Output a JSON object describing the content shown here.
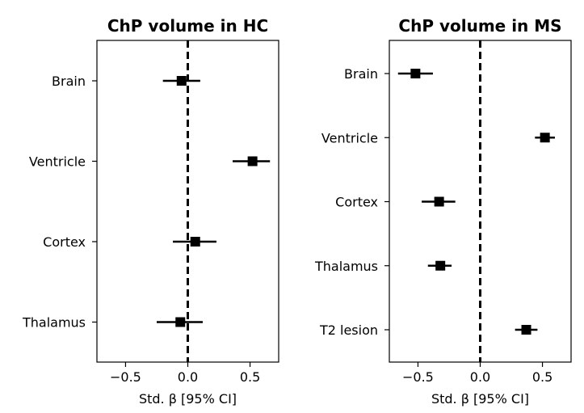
{
  "chart_data": [
    {
      "type": "forest",
      "title": "ChP volume in HC",
      "xlabel": "Std. β [95% CI]",
      "ylabel": "",
      "xlim": [
        -0.73,
        0.73
      ],
      "xticks": [
        -0.5,
        0.0,
        0.5
      ],
      "xtick_labels": [
        "−0.5",
        "0.0",
        "0.5"
      ],
      "reference_line": 0.0,
      "grid": false,
      "categories": [
        "Brain",
        "Ventricle",
        "Cortex",
        "Thalamus"
      ],
      "estimates": [
        -0.05,
        0.52,
        0.06,
        -0.06
      ],
      "ci_low": [
        -0.2,
        0.36,
        -0.12,
        -0.25
      ],
      "ci_high": [
        0.1,
        0.66,
        0.23,
        0.12
      ]
    },
    {
      "type": "forest",
      "title": "ChP volume in MS",
      "xlabel": "Std. β [95% CI]",
      "ylabel": "",
      "xlim": [
        -0.73,
        0.73
      ],
      "xticks": [
        -0.5,
        0.0,
        0.5
      ],
      "xtick_labels": [
        "−0.5",
        "0.0",
        "0.5"
      ],
      "reference_line": 0.0,
      "grid": false,
      "categories": [
        "Brain",
        "Ventricle",
        "Cortex",
        "Thalamus",
        "T2 lesion"
      ],
      "estimates": [
        -0.52,
        0.52,
        -0.33,
        -0.32,
        0.37
      ],
      "ci_low": [
        -0.66,
        0.44,
        -0.47,
        -0.42,
        0.28
      ],
      "ci_high": [
        -0.38,
        0.6,
        -0.2,
        -0.23,
        0.46
      ]
    }
  ]
}
